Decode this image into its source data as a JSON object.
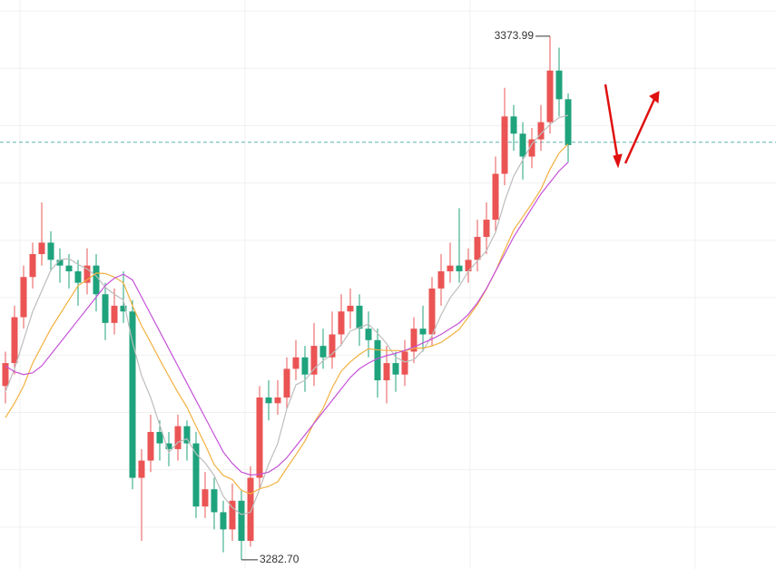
{
  "chart_data": {
    "type": "candlestick",
    "ylim": [
      3281.1,
      3380.3
    ],
    "ygrid": [
      3378.4,
      3368.4,
      3358.4,
      3348.4,
      3338.4,
      3328.4,
      3318.4,
      3308.4,
      3298.4,
      3288.4
    ],
    "grid": true,
    "up_color": "#eb5454",
    "down_color": "#1fa37d",
    "candles": {
      "open": [
        3313,
        3317,
        3325,
        3332,
        3336,
        3338,
        3335,
        3334,
        3333,
        3331,
        3334,
        3329,
        3324,
        3327,
        3326,
        3297,
        3300,
        3305,
        3303,
        3302,
        3306,
        3303,
        3292,
        3295,
        3291,
        3288,
        3293,
        3286,
        3297,
        3311,
        3310,
        3311,
        3316,
        3318,
        3315,
        3320,
        3318,
        3322,
        3326,
        3327,
        3323,
        3321,
        3314,
        3317,
        3315,
        3319,
        3323,
        3322,
        3330,
        3333,
        3334,
        3333,
        3335,
        3339,
        3342,
        3350,
        3360,
        3357,
        3353,
        3356,
        3359,
        3368,
        3363
      ],
      "high": [
        3319,
        3327,
        3334,
        3338,
        3345,
        3340,
        3337,
        3336,
        3335,
        3337,
        3336,
        3331,
        3330,
        3333,
        3328,
        3302,
        3308,
        3307,
        3305,
        3308,
        3307,
        3305,
        3298,
        3297,
        3293,
        3296,
        3295,
        3299,
        3313,
        3314,
        3314,
        3318,
        3321,
        3320,
        3324,
        3323,
        3326,
        3329,
        3330,
        3329,
        3326,
        3323,
        3320,
        3319,
        3321,
        3325,
        3327,
        3332,
        3336,
        3338,
        3344,
        3337,
        3342,
        3345,
        3353,
        3365,
        3362,
        3359,
        3358,
        3362,
        3373.99,
        3372,
        3364
      ],
      "low": [
        3310,
        3315,
        3323,
        3330,
        3334,
        3333,
        3331,
        3330,
        3327,
        3329,
        3326,
        3321,
        3322,
        3324,
        3295,
        3286,
        3298,
        3300,
        3299,
        3300,
        3300,
        3290,
        3290,
        3288,
        3284,
        3286,
        3282.7,
        3285,
        3295,
        3307,
        3308,
        3309,
        3314,
        3312,
        3313,
        3316,
        3316,
        3320,
        3323,
        3320,
        3318,
        3311,
        3310,
        3312,
        3313,
        3317,
        3319,
        3320,
        3327,
        3331,
        3331,
        3331,
        3333,
        3336,
        3340,
        3348,
        3354,
        3349,
        3351,
        3354,
        3357,
        3360,
        3352
      ],
      "close": [
        3317,
        3325,
        3332,
        3336,
        3338,
        3335,
        3334,
        3333,
        3331,
        3334,
        3329,
        3324,
        3327,
        3326,
        3297,
        3300,
        3305,
        3303,
        3302,
        3306,
        3303,
        3292,
        3295,
        3291,
        3288,
        3293,
        3286,
        3297,
        3311,
        3310,
        3311,
        3316,
        3318,
        3315,
        3320,
        3318,
        3322,
        3326,
        3327,
        3323,
        3321,
        3314,
        3317,
        3315,
        3319,
        3323,
        3322,
        3330,
        3333,
        3334,
        3333,
        3335,
        3339,
        3342,
        3350,
        3360,
        3357,
        3353,
        3356,
        3359,
        3368,
        3363,
        3355
      ]
    },
    "lines": [
      {
        "color": "#bdbdbd",
        "values": [
          3312,
          3316,
          3321,
          3326,
          3329.6,
          3333.2,
          3335,
          3335.2,
          3334.2,
          3333.4,
          3332.2,
          3330.2,
          3329,
          3328,
          3320.6,
          3314.8,
          3311,
          3306.2,
          3301.4,
          3303.2,
          3303.8,
          3301.2,
          3299.6,
          3297.4,
          3293.8,
          3291.8,
          3290.6,
          3291,
          3295,
          3299.4,
          3303,
          3309,
          3313.2,
          3314,
          3316,
          3317.4,
          3318.6,
          3320.2,
          3322.6,
          3323.2,
          3323.8,
          3322.2,
          3320.4,
          3318,
          3317.2,
          3317.6,
          3319.2,
          3321.8,
          3325.4,
          3328.4,
          3330.4,
          3333,
          3334.8,
          3336.6,
          3339.8,
          3345.2,
          3349.6,
          3352.4,
          3355.2,
          3357,
          3358.6,
          3359.8,
          3360.2
        ]
      },
      {
        "color": "#f2b13f",
        "values": [
          3307.5,
          3310,
          3313,
          3317,
          3320,
          3323,
          3325.5,
          3328,
          3330.5,
          3331.5,
          3332.7,
          3332.6,
          3332,
          3331,
          3327,
          3323.5,
          3320.6,
          3317.6,
          3314.7,
          3311.9,
          3309.3,
          3306,
          3302.8,
          3299.3,
          3297.4,
          3296.7,
          3294.8,
          3294.2,
          3295.1,
          3295.5,
          3296.3,
          3298.7,
          3301,
          3303.4,
          3306.6,
          3309.1,
          3312.7,
          3315.6,
          3317.2,
          3318.5,
          3319.5,
          3319.3,
          3319.2,
          3319.2,
          3319.1,
          3319.6,
          3319.6,
          3320,
          3320.6,
          3321.7,
          3322.9,
          3325,
          3327.2,
          3329.9,
          3333,
          3336.7,
          3340.2,
          3342.5,
          3344.8,
          3347.3,
          3350.8,
          3353.6,
          3355.2
        ]
      },
      {
        "color": "#c552d8",
        "values": [
          3316.5,
          3315.5,
          3315,
          3315.3,
          3316.5,
          3318.5,
          3320.5,
          3322.5,
          3324.5,
          3326.5,
          3328.5,
          3330.5,
          3331.8,
          3332.5,
          3331.5,
          3328.5,
          3325.5,
          3322.5,
          3319.5,
          3316.5,
          3313.5,
          3310.5,
          3307.5,
          3304.5,
          3301.5,
          3299.5,
          3298,
          3297.5,
          3297.6,
          3298,
          3299,
          3300.5,
          3302.5,
          3304.5,
          3306.5,
          3308.5,
          3310.5,
          3312.5,
          3314.5,
          3316,
          3317,
          3317.8,
          3318.3,
          3318.7,
          3319.2,
          3319.8,
          3320.5,
          3321.2,
          3322,
          3323,
          3324,
          3325.5,
          3327.5,
          3330,
          3333,
          3336,
          3339,
          3341.5,
          3344,
          3346.5,
          3348.5,
          3350.5,
          3352
        ]
      }
    ],
    "current_price": 3355.5,
    "current_color": "#5fb3a8",
    "annotations": [
      {
        "value": 3373.99,
        "label": "3373.99"
      },
      {
        "value": 3282.7,
        "label": "3282.70"
      }
    ]
  }
}
